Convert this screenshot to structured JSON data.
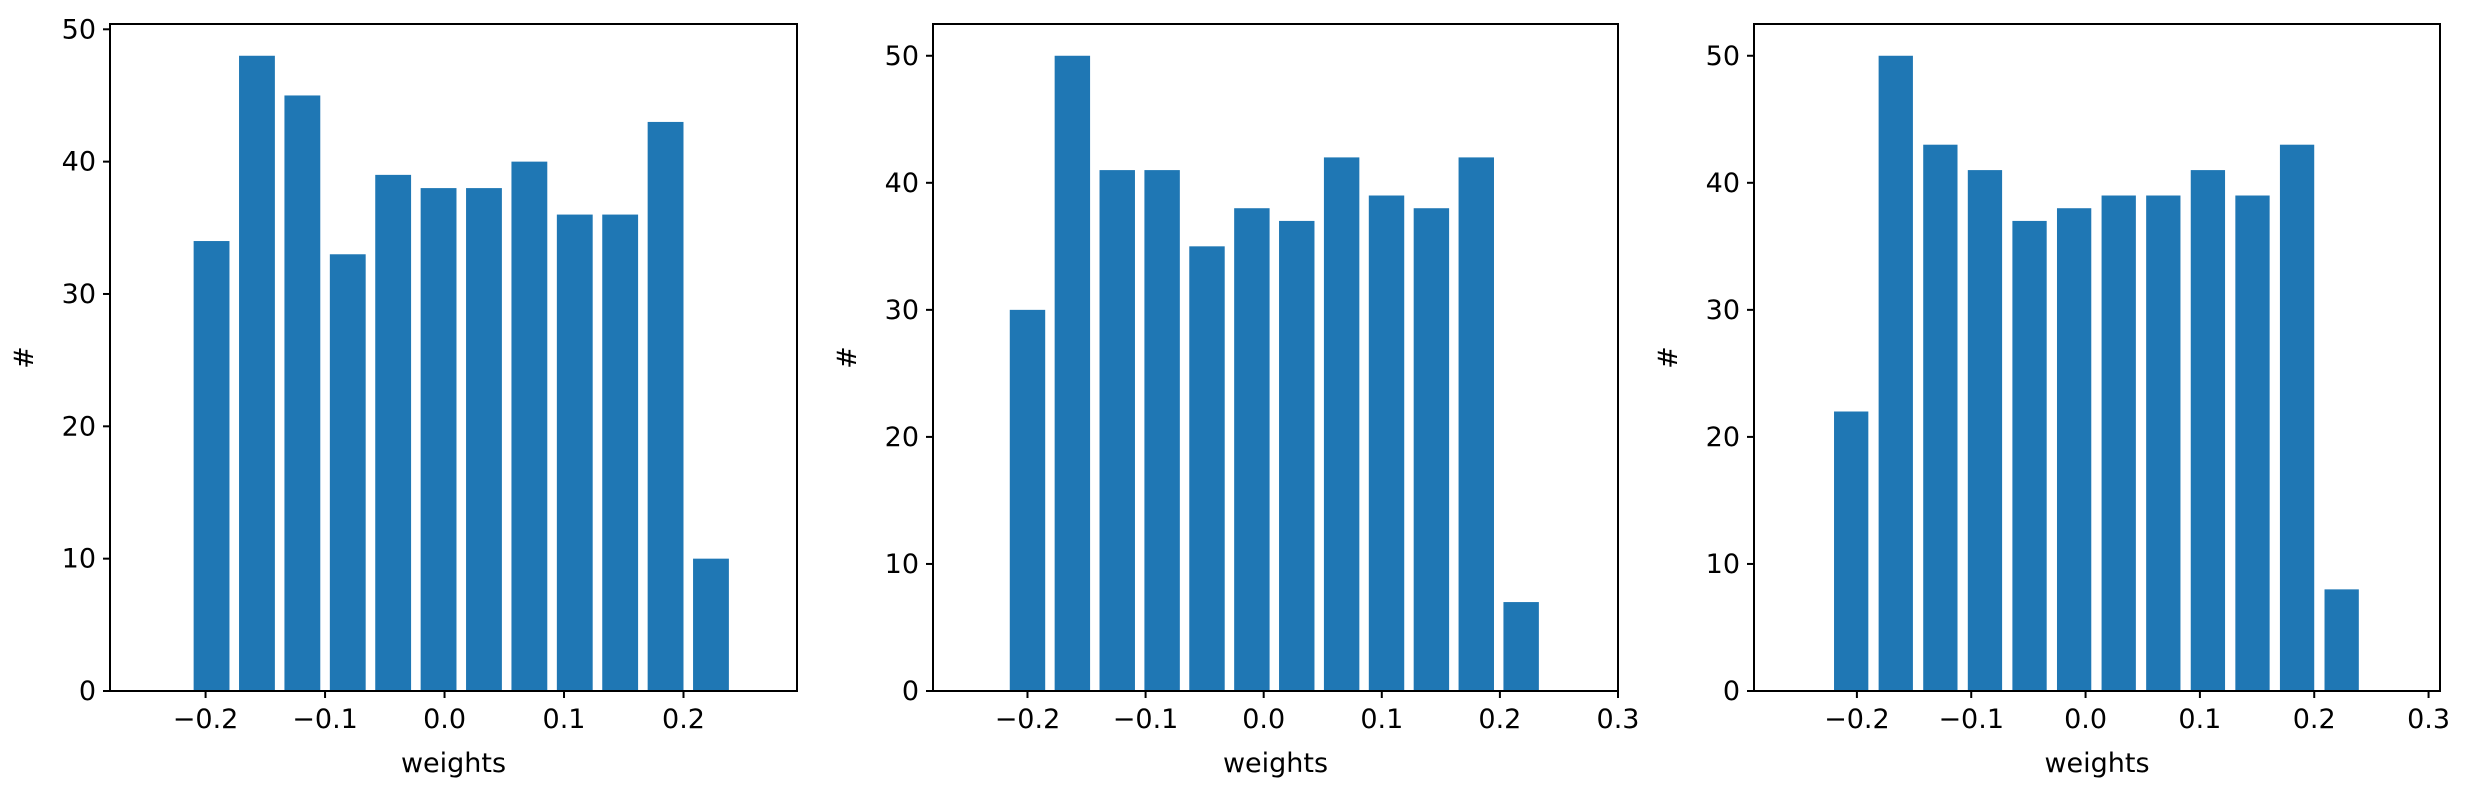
{
  "chart_data": [
    {
      "type": "bar",
      "xlabel": "weights",
      "ylabel": "#",
      "bar_width": 0.03,
      "x": [
        -0.195,
        -0.157,
        -0.119,
        -0.081,
        -0.043,
        -0.005,
        0.033,
        0.071,
        0.109,
        0.147,
        0.185,
        0.223
      ],
      "values": [
        34,
        48,
        45,
        33,
        39,
        38,
        38,
        40,
        36,
        36,
        43,
        10
      ],
      "xlim": [
        -0.28,
        0.295
      ],
      "ylim": [
        0,
        50.4
      ],
      "xticks": [
        -0.2,
        -0.1,
        0.0,
        0.1,
        0.2
      ],
      "xtick_labels": [
        "−0.2",
        "−0.1",
        "0.0",
        "0.1",
        "0.2"
      ],
      "yticks": [
        0,
        10,
        20,
        30,
        40,
        50
      ],
      "ytick_labels": [
        "0",
        "10",
        "20",
        "30",
        "40",
        "50"
      ],
      "color": "#1f77b4",
      "grid": false
    },
    {
      "type": "bar",
      "xlabel": "weights",
      "ylabel": "#",
      "bar_width": 0.03,
      "x": [
        -0.2,
        -0.162,
        -0.124,
        -0.086,
        -0.048,
        -0.01,
        0.028,
        0.066,
        0.104,
        0.142,
        0.18,
        0.218
      ],
      "values": [
        30,
        50,
        41,
        41,
        35,
        38,
        37,
        42,
        39,
        38,
        42,
        7
      ],
      "xlim": [
        -0.28,
        0.3
      ],
      "ylim": [
        0,
        52.5
      ],
      "xticks": [
        -0.2,
        -0.1,
        0.0,
        0.1,
        0.2,
        0.3
      ],
      "xtick_labels": [
        "−0.2",
        "−0.1",
        "0.0",
        "0.1",
        "0.2",
        "0.3"
      ],
      "yticks": [
        0,
        10,
        20,
        30,
        40,
        50
      ],
      "ytick_labels": [
        "0",
        "10",
        "20",
        "30",
        "40",
        "50"
      ],
      "color": "#1f77b4",
      "grid": false
    },
    {
      "type": "bar",
      "xlabel": "weights",
      "ylabel": "#",
      "bar_width": 0.03,
      "x": [
        -0.205,
        -0.166,
        -0.127,
        -0.088,
        -0.049,
        -0.01,
        0.029,
        0.068,
        0.107,
        0.146,
        0.185,
        0.224
      ],
      "values": [
        22,
        50,
        43,
        41,
        37,
        38,
        39,
        39,
        41,
        39,
        43,
        8
      ],
      "xlim": [
        -0.29,
        0.31
      ],
      "ylim": [
        0,
        52.5
      ],
      "xticks": [
        -0.2,
        -0.1,
        0.0,
        0.1,
        0.2,
        0.3
      ],
      "xtick_labels": [
        "−0.2",
        "−0.1",
        "0.0",
        "0.1",
        "0.2",
        "0.3"
      ],
      "yticks": [
        0,
        10,
        20,
        30,
        40,
        50
      ],
      "ytick_labels": [
        "0",
        "10",
        "20",
        "30",
        "40",
        "50"
      ],
      "color": "#1f77b4",
      "grid": false
    }
  ]
}
